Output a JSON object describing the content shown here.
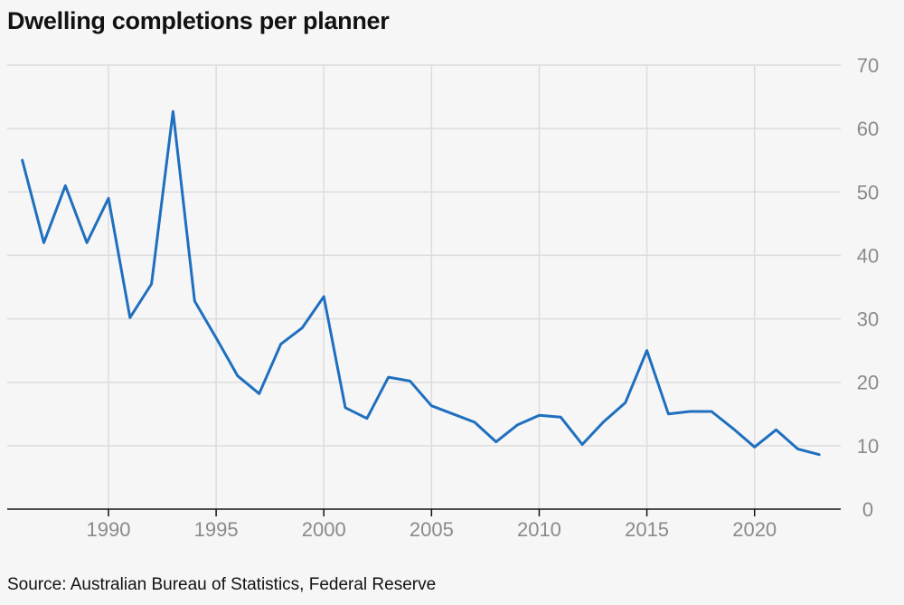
{
  "title": "Dwelling completions per planner",
  "source": "Source: Australian Bureau of Statistics, Federal Reserve",
  "colors": {
    "line": "#1f6fbf",
    "grid": "#dcdcdc",
    "axis": "#121212",
    "tick_text": "#8a8a8a",
    "background": "#f6f6f6"
  },
  "chart_data": {
    "type": "line",
    "title": "Dwelling completions per planner",
    "xlabel": "",
    "ylabel": "",
    "xlim": [
      1985.3,
      2024.0
    ],
    "ylim": [
      0,
      70
    ],
    "x_ticks": [
      1990,
      1995,
      2000,
      2005,
      2010,
      2015,
      2020
    ],
    "y_ticks": [
      0,
      10,
      20,
      30,
      40,
      50,
      60,
      70
    ],
    "y_axis_position": "right",
    "grid": true,
    "series": [
      {
        "name": "",
        "x": [
          1986,
          1987,
          1988,
          1989,
          1990,
          1991,
          1992,
          1993,
          1994,
          1995,
          1996,
          1997,
          1998,
          1999,
          2000,
          2001,
          2002,
          2003,
          2004,
          2005,
          2006,
          2007,
          2008,
          2009,
          2010,
          2011,
          2012,
          2013,
          2014,
          2015,
          2016,
          2017,
          2018,
          2019,
          2020,
          2021,
          2022,
          2023
        ],
        "values": [
          55,
          42,
          51,
          42,
          49,
          30.2,
          35.5,
          62.7,
          32.8,
          27,
          21,
          18.2,
          26,
          28.6,
          33.5,
          16,
          14.3,
          20.8,
          20.2,
          16.3,
          15,
          13.7,
          10.6,
          13.3,
          14.8,
          14.5,
          10.2,
          13.8,
          16.8,
          25,
          15,
          15.4,
          15.4,
          12.7,
          9.8,
          12.5,
          9.5,
          8.6
        ]
      }
    ]
  }
}
